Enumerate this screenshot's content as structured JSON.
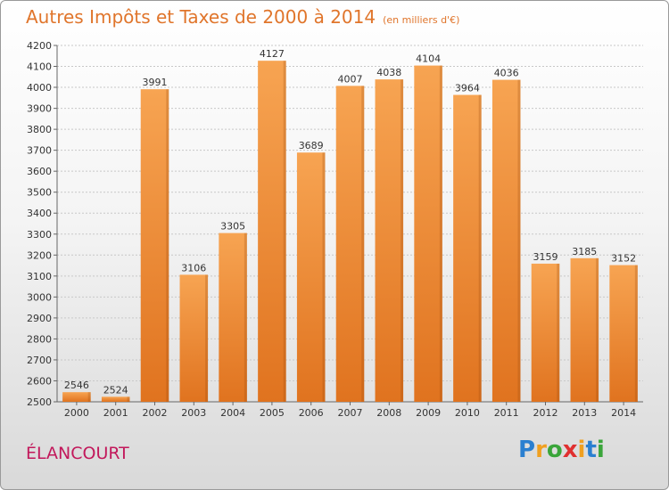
{
  "header": {
    "title": "Autres Impôts et Taxes de 2000 à 2014",
    "unit_note": "(en milliers d'€)"
  },
  "footer": {
    "city": "ÉLANCOURT",
    "logo": "Proxiti"
  },
  "colors": {
    "bar_top": "#f7a452",
    "bar_bottom": "#e0731f",
    "title": "#e0752b",
    "city": "#c2185b",
    "grid": "#c8c8c8"
  },
  "chart_data": {
    "type": "bar",
    "title": "Autres Impôts et Taxes de 2000 à 2014",
    "xlabel": "",
    "ylabel": "",
    "categories": [
      "2000",
      "2001",
      "2002",
      "2003",
      "2004",
      "2005",
      "2006",
      "2007",
      "2008",
      "2009",
      "2010",
      "2011",
      "2012",
      "2013",
      "2014"
    ],
    "values": [
      2546,
      2524,
      3991,
      3106,
      3305,
      4127,
      3689,
      4007,
      4038,
      4104,
      3964,
      4036,
      3159,
      3185,
      3152
    ],
    "ylim": [
      2500,
      4200
    ],
    "ytick_step": 100,
    "grid": true,
    "legend": "none"
  }
}
